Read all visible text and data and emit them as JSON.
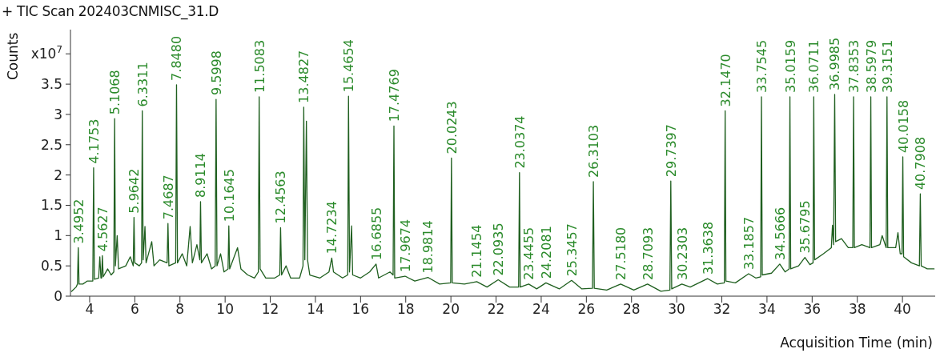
{
  "chart_data": {
    "type": "line",
    "title": "+ TIC Scan 202403CNMISC_31.D",
    "xlabel": "Acquisition Time (min)",
    "ylabel": "Counts",
    "color": "#1f5f1f",
    "marker": "none",
    "line_style": "solid",
    "xlim": [
      3.15,
      41.45
    ],
    "xticks": [
      4,
      6,
      8,
      10,
      12,
      14,
      16,
      18,
      20,
      22,
      24,
      26,
      28,
      30,
      32,
      34,
      36,
      38,
      40
    ],
    "ylim": [
      0,
      4.4
    ],
    "yticks": [
      0,
      0.5,
      1,
      1.5,
      2,
      2.5,
      3,
      3.5,
      {
        "value": 4,
        "label": "x10$^{7}$"
      }
    ],
    "x": [
      3.2,
      3.4,
      3.46,
      3.4952,
      3.53,
      3.7,
      3.9,
      4.14,
      4.1753,
      4.21,
      4.4,
      4.45,
      4.5,
      4.53,
      4.5627,
      4.6,
      4.8,
      4.95,
      5.07,
      5.1068,
      5.14,
      5.22,
      5.28,
      5.6,
      5.8,
      5.93,
      5.9642,
      6.0,
      6.2,
      6.3,
      6.3311,
      6.37,
      6.45,
      6.5,
      6.75,
      6.85,
      7.1,
      7.43,
      7.4687,
      7.51,
      7.81,
      7.848,
      7.89,
      8.1,
      8.3,
      8.45,
      8.55,
      8.75,
      8.88,
      8.9114,
      8.95,
      9.2,
      9.4,
      9.56,
      9.5998,
      9.64,
      9.8,
      9.95,
      10.13,
      10.1645,
      10.2,
      10.55,
      10.7,
      11.0,
      11.3,
      11.47,
      11.5083,
      11.55,
      11.8,
      12.2,
      12.42,
      12.4563,
      12.5,
      12.7,
      12.9,
      13.3,
      13.45,
      13.4827,
      13.53,
      13.6,
      13.65,
      13.75,
      14.2,
      14.6,
      14.7234,
      14.8,
      15.2,
      15.43,
      15.4654,
      15.51,
      15.6,
      15.65,
      16.0,
      16.4,
      16.6855,
      16.8,
      17.3,
      17.44,
      17.4769,
      17.51,
      17.9674,
      18.4,
      18.9814,
      19.5,
      19.99,
      20.0243,
      20.06,
      20.6,
      21.1454,
      21.6,
      22.0935,
      22.6,
      23.0,
      23.0374,
      23.07,
      23.4455,
      23.8,
      24.2081,
      24.8,
      25.3457,
      25.8,
      26.27,
      26.3103,
      26.35,
      26.9,
      27.518,
      28.1,
      28.7093,
      29.3,
      29.7,
      29.7397,
      29.78,
      30.2303,
      30.6,
      31.3638,
      31.8,
      32.11,
      32.147,
      32.18,
      32.6,
      33.1857,
      33.5,
      33.72,
      33.7545,
      33.79,
      34.2,
      34.5666,
      34.8,
      34.98,
      35.0159,
      35.05,
      35.4,
      35.6795,
      35.9,
      36.04,
      36.0711,
      36.11,
      36.5,
      36.85,
      36.9,
      36.95,
      36.9985,
      37.04,
      37.3,
      37.6,
      37.8,
      37.8353,
      37.87,
      38.2,
      38.56,
      38.5979,
      38.63,
      39.0,
      39.1,
      39.28,
      39.3151,
      39.35,
      39.7,
      39.8,
      39.9,
      39.98,
      40.0158,
      40.05,
      40.4,
      40.75,
      40.7908,
      40.83,
      41.1,
      41.4
    ],
    "values": [
      0.08,
      0.15,
      0.2,
      0.8,
      0.2,
      0.2,
      0.25,
      0.25,
      2.12,
      0.28,
      0.3,
      0.65,
      0.3,
      0.3,
      0.67,
      0.32,
      0.45,
      0.35,
      0.4,
      2.93,
      0.5,
      1.0,
      0.45,
      0.5,
      0.65,
      0.5,
      1.3,
      0.55,
      0.5,
      0.55,
      3.06,
      0.6,
      1.15,
      0.55,
      0.9,
      0.5,
      0.6,
      0.55,
      1.2,
      0.5,
      0.55,
      3.49,
      0.55,
      0.7,
      0.5,
      1.15,
      0.55,
      0.85,
      0.6,
      1.56,
      0.55,
      0.7,
      0.45,
      0.5,
      3.25,
      0.5,
      0.7,
      0.4,
      0.45,
      1.16,
      0.45,
      0.8,
      0.45,
      0.35,
      0.3,
      0.4,
      3.29,
      0.45,
      0.3,
      0.3,
      0.35,
      1.13,
      0.35,
      0.5,
      0.3,
      0.3,
      0.5,
      3.12,
      0.6,
      2.89,
      0.6,
      0.35,
      0.3,
      0.4,
      0.63,
      0.4,
      0.3,
      0.35,
      3.3,
      0.4,
      1.16,
      0.35,
      0.3,
      0.4,
      0.53,
      0.3,
      0.4,
      0.35,
      2.81,
      0.3,
      0.33,
      0.25,
      0.31,
      0.2,
      0.22,
      2.28,
      0.22,
      0.2,
      0.24,
      0.15,
      0.27,
      0.15,
      0.15,
      2.04,
      0.15,
      0.2,
      0.12,
      0.22,
      0.12,
      0.26,
      0.12,
      0.13,
      1.89,
      0.13,
      0.1,
      0.2,
      0.1,
      0.2,
      0.08,
      0.1,
      1.9,
      0.12,
      0.2,
      0.15,
      0.29,
      0.2,
      0.22,
      3.06,
      0.25,
      0.22,
      0.37,
      0.3,
      0.32,
      3.29,
      0.35,
      0.38,
      0.53,
      0.4,
      0.45,
      3.29,
      0.45,
      0.5,
      0.64,
      0.52,
      0.55,
      3.29,
      0.6,
      0.7,
      0.8,
      1.17,
      0.85,
      3.33,
      0.9,
      0.95,
      0.8,
      0.8,
      3.29,
      0.8,
      0.85,
      0.8,
      3.29,
      0.8,
      0.85,
      1.0,
      0.8,
      3.29,
      0.8,
      0.8,
      1.05,
      0.7,
      0.7,
      2.3,
      0.65,
      0.55,
      0.5,
      1.69,
      0.5,
      0.45,
      0.45
    ],
    "annotations": [
      {
        "text": "3.4952",
        "x": 3.4952,
        "y": 0.8
      },
      {
        "text": "4.1753",
        "x": 4.1753,
        "y": 2.12
      },
      {
        "text": "4.5627",
        "x": 4.5627,
        "y": 0.67
      },
      {
        "text": "5.1068",
        "x": 5.1068,
        "y": 2.93
      },
      {
        "text": "5.9642",
        "x": 5.9642,
        "y": 1.3
      },
      {
        "text": "6.3311",
        "x": 6.3311,
        "y": 3.06
      },
      {
        "text": "7.4687",
        "x": 7.4687,
        "y": 1.2
      },
      {
        "text": "7.8480",
        "x": 7.848,
        "y": 3.49
      },
      {
        "text": "8.9114",
        "x": 8.9114,
        "y": 1.56
      },
      {
        "text": "9.5998",
        "x": 9.5998,
        "y": 3.25
      },
      {
        "text": "10.1645",
        "x": 10.1645,
        "y": 1.16
      },
      {
        "text": "11.5083",
        "x": 11.5083,
        "y": 3.29
      },
      {
        "text": "12.4563",
        "x": 12.4563,
        "y": 1.13
      },
      {
        "text": "13.4827",
        "x": 13.4827,
        "y": 3.12
      },
      {
        "text": "14.7234",
        "x": 14.7234,
        "y": 0.63
      },
      {
        "text": "15.4654",
        "x": 15.4654,
        "y": 3.3
      },
      {
        "text": "16.6855",
        "x": 16.6855,
        "y": 0.53
      },
      {
        "text": "17.4769",
        "x": 17.4769,
        "y": 2.81
      },
      {
        "text": "17.9674",
        "x": 17.9674,
        "y": 0.33
      },
      {
        "text": "18.9814",
        "x": 18.9814,
        "y": 0.31
      },
      {
        "text": "20.0243",
        "x": 20.0243,
        "y": 2.28
      },
      {
        "text": "21.1454",
        "x": 21.1454,
        "y": 0.24
      },
      {
        "text": "22.0935",
        "x": 22.0935,
        "y": 0.27
      },
      {
        "text": "23.0374",
        "x": 23.0374,
        "y": 2.04
      },
      {
        "text": "23.4455",
        "x": 23.4455,
        "y": 0.2
      },
      {
        "text": "24.2081",
        "x": 24.2081,
        "y": 0.22
      },
      {
        "text": "25.3457",
        "x": 25.3457,
        "y": 0.26
      },
      {
        "text": "26.3103",
        "x": 26.3103,
        "y": 1.89
      },
      {
        "text": "27.5180",
        "x": 27.518,
        "y": 0.2
      },
      {
        "text": "28.7093",
        "x": 28.7093,
        "y": 0.2
      },
      {
        "text": "29.7397",
        "x": 29.7397,
        "y": 1.9
      },
      {
        "text": "30.2303",
        "x": 30.2303,
        "y": 0.2
      },
      {
        "text": "31.3638",
        "x": 31.3638,
        "y": 0.29
      },
      {
        "text": "32.1470",
        "x": 32.147,
        "y": 3.06
      },
      {
        "text": "33.1857",
        "x": 33.1857,
        "y": 0.37
      },
      {
        "text": "33.7545",
        "x": 33.7545,
        "y": 3.29
      },
      {
        "text": "34.5666",
        "x": 34.5666,
        "y": 0.53
      },
      {
        "text": "35.0159",
        "x": 35.0159,
        "y": 3.29
      },
      {
        "text": "35.6795",
        "x": 35.6795,
        "y": 0.64
      },
      {
        "text": "36.0711",
        "x": 36.0711,
        "y": 3.29
      },
      {
        "text": "36.9985",
        "x": 36.9985,
        "y": 3.33
      },
      {
        "text": "37.8353",
        "x": 37.8353,
        "y": 3.29
      },
      {
        "text": "38.5979",
        "x": 38.5979,
        "y": 3.29
      },
      {
        "text": "39.3151",
        "x": 39.3151,
        "y": 3.29
      },
      {
        "text": "40.0158",
        "x": 40.0158,
        "y": 2.3
      },
      {
        "text": "40.7908",
        "x": 40.7908,
        "y": 1.69
      }
    ]
  }
}
